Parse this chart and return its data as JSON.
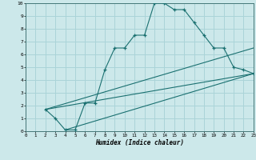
{
  "xlabel": "Humidex (Indice chaleur)",
  "bg_color": "#cce8ea",
  "grid_color": "#aad4d8",
  "line_color": "#1a7070",
  "xlim": [
    0,
    23
  ],
  "ylim": [
    0,
    10
  ],
  "xticks": [
    0,
    1,
    2,
    3,
    4,
    5,
    6,
    7,
    8,
    9,
    10,
    11,
    12,
    13,
    14,
    15,
    16,
    17,
    18,
    19,
    20,
    21,
    22,
    23
  ],
  "yticks": [
    0,
    1,
    2,
    3,
    4,
    5,
    6,
    7,
    8,
    9,
    10
  ],
  "curve1_x": [
    2,
    3,
    4,
    5,
    6,
    7,
    8,
    9,
    10,
    11,
    12,
    13,
    14,
    15,
    16,
    17,
    18,
    19,
    20,
    21,
    22,
    23
  ],
  "curve1_y": [
    1.7,
    1.0,
    0.1,
    0.1,
    2.2,
    2.2,
    4.8,
    6.5,
    6.5,
    7.5,
    7.5,
    10.0,
    10.0,
    9.5,
    9.5,
    8.5,
    7.5,
    6.5,
    6.5,
    5.0,
    4.8,
    4.5
  ],
  "line2_x": [
    2,
    23
  ],
  "line2_y": [
    1.7,
    6.5
  ],
  "line3_x": [
    2,
    23
  ],
  "line3_y": [
    1.7,
    4.5
  ],
  "line4_x": [
    4,
    23
  ],
  "line4_y": [
    0.1,
    4.5
  ]
}
